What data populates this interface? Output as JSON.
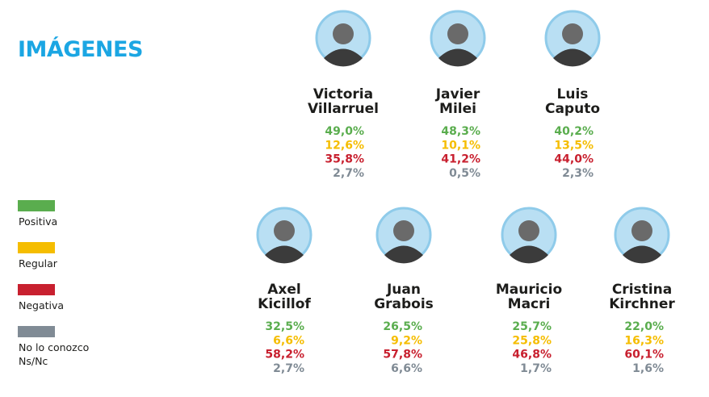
{
  "title": "IMÁGENES",
  "legend": [
    {
      "label": "Positiva",
      "color": "#5aad4e"
    },
    {
      "label": "Regular",
      "color": "#f5bd00"
    },
    {
      "label": "Negativa",
      "color": "#c8202f"
    },
    {
      "label": "No lo conozco\nNs/Nc",
      "color": "#808b95"
    }
  ],
  "people": [
    {
      "name_lines": [
        "Victoria",
        "Villarruel"
      ],
      "values": [
        "49,0%",
        "12,6%",
        "35,8%",
        "2,7%"
      ]
    },
    {
      "name_lines": [
        "Javier",
        "Milei"
      ],
      "values": [
        "48,3%",
        "10,1%",
        "41,2%",
        "0,5%"
      ]
    },
    {
      "name_lines": [
        "Luis",
        "Caputo"
      ],
      "values": [
        "40,2%",
        "13,5%",
        "44,0%",
        "2,3%"
      ]
    },
    {
      "name_lines": [
        "Axel",
        "Kicillof"
      ],
      "values": [
        "32,5%",
        "6,6%",
        "58,2%",
        "2,7%"
      ]
    },
    {
      "name_lines": [
        "Juan",
        "Grabois"
      ],
      "values": [
        "26,5%",
        "9,2%",
        "57,8%",
        "6,6%"
      ]
    },
    {
      "name_lines": [
        "Mauricio",
        "Macri"
      ],
      "values": [
        "25,7%",
        "25,8%",
        "46,8%",
        "1,7%"
      ]
    },
    {
      "name_lines": [
        "Cristina",
        "Kirchner"
      ],
      "values": [
        "22,0%",
        "16,3%",
        "60,1%",
        "1,6%"
      ]
    }
  ]
}
